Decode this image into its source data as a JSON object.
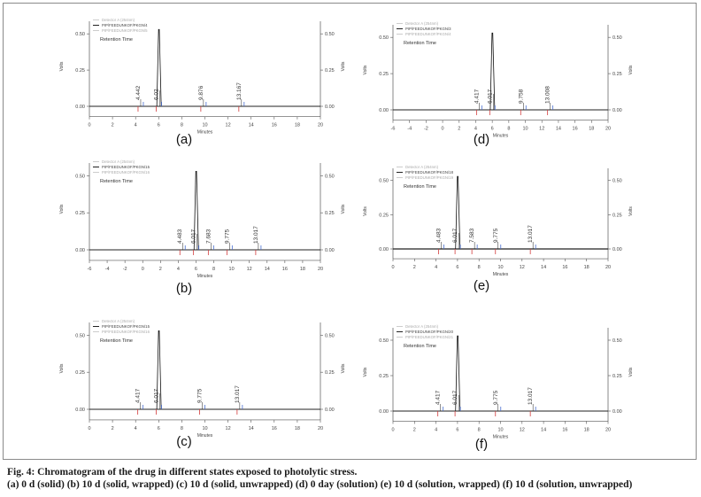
{
  "caption": {
    "title": "Fig. 4: Chromatogram of the drug in different states exposed to photolytic stress.",
    "parts": "(a) 0 d (solid) (b) 10 d (solid, wrapped) (c) 10 d (solid, unwrapped) (d) 0 day (solution) (e) 10 d (solution, wrapped) (f) 10 d (solution, unwrapped)"
  },
  "chart_data": [
    {
      "type": "line",
      "panel_label": "(a)",
      "xlabel": "Minutes",
      "ylabel_left": "Volts",
      "ylabel_right": "Volts",
      "xlim": [
        0,
        20
      ],
      "ylim": [
        -0.05,
        0.55
      ],
      "x_ticks": [
        "0",
        "2",
        "4",
        "6",
        "8",
        "10",
        "12",
        "14",
        "16",
        "18",
        "20"
      ],
      "y_ticks_left": [
        "0.00",
        "0.25",
        "0.50"
      ],
      "y_ticks_right": [
        "0.00",
        "0.25",
        "0.50"
      ],
      "legend": [
        "Detector A (254nm)",
        "PIP/FEEDUNKOF/PKGN/4",
        "PIP/FEEDUNKOF/PKGN/5"
      ],
      "legend_sub": "Retention Time",
      "peaks": [
        {
          "rt": 4.442,
          "height": 0.03,
          "label": "4.442"
        },
        {
          "rt": 6.02,
          "height": 0.53,
          "label": "6.02"
        },
        {
          "rt": 9.876,
          "height": 0.02,
          "label": "9.876"
        },
        {
          "rt": 13.167,
          "height": 0.02,
          "label": "13.167"
        }
      ]
    },
    {
      "type": "line",
      "panel_label": "(b)",
      "xlabel": "Minutes",
      "ylabel_left": "Volts",
      "ylabel_right": "Volts",
      "xlim": [
        -6,
        20
      ],
      "ylim": [
        -0.05,
        0.55
      ],
      "x_ticks": [
        "-6",
        "-4",
        "-2",
        "0",
        "2",
        "4",
        "6",
        "8",
        "10",
        "12",
        "14",
        "16",
        "18",
        "20"
      ],
      "y_ticks_left": [
        "0.00",
        "0.25",
        "0.50"
      ],
      "y_ticks_right": [
        "0.00",
        "0.25",
        "0.50"
      ],
      "legend": [
        "Detector A (254nm)",
        "PIP/FEEDUNKOF/PKGN/15",
        "PIP/FEEDUNKOF/PKGN/16"
      ],
      "legend_sub": "Retention Time",
      "peaks": [
        {
          "rt": 4.483,
          "height": 0.03,
          "label": "4.483"
        },
        {
          "rt": 6.017,
          "height": 0.53,
          "label": "6.017"
        },
        {
          "rt": 7.683,
          "height": 0.02,
          "label": "7.683"
        },
        {
          "rt": 9.775,
          "height": 0.02,
          "label": "9.775"
        },
        {
          "rt": 13.017,
          "height": 0.02,
          "label": "13.017"
        }
      ]
    },
    {
      "type": "line",
      "panel_label": "(c)",
      "xlabel": "Minutes",
      "ylabel_left": "Volts",
      "ylabel_right": "Volts",
      "xlim": [
        0,
        20
      ],
      "ylim": [
        -0.05,
        0.55
      ],
      "x_ticks": [
        "0",
        "2",
        "4",
        "6",
        "8",
        "10",
        "12",
        "14",
        "16",
        "18",
        "20"
      ],
      "y_ticks_left": [
        "0.00",
        "0.25",
        "0.50"
      ],
      "y_ticks_right": [
        "0.00",
        "0.25",
        "0.50"
      ],
      "legend": [
        "Detector A (254nm)",
        "PIP/FEEDUNKOF/PKGN/15",
        "PIP/FEEDUNKOF/PKGN/16"
      ],
      "legend_sub": "Retention Time",
      "peaks": [
        {
          "rt": 4.417,
          "height": 0.03,
          "label": "4.417"
        },
        {
          "rt": 6.017,
          "height": 0.53,
          "label": "6.017"
        },
        {
          "rt": 9.775,
          "height": 0.02,
          "label": "9.775"
        },
        {
          "rt": 13.017,
          "height": 0.02,
          "label": "13.017"
        }
      ]
    },
    {
      "type": "line",
      "panel_label": "(d)",
      "xlabel": "Minutes",
      "ylabel_left": "Volts",
      "ylabel_right": "Volts",
      "xlim": [
        -6,
        20
      ],
      "ylim": [
        -0.05,
        0.55
      ],
      "x_ticks": [
        "-6",
        "-4",
        "-2",
        "0",
        "2",
        "4",
        "6",
        "8",
        "10",
        "12",
        "14",
        "16",
        "18",
        "20"
      ],
      "y_ticks_left": [
        "0.00",
        "0.25",
        "0.50"
      ],
      "y_ticks_right": [
        "0.00",
        "0.25",
        "0.50"
      ],
      "legend": [
        "Detector A (254nm)",
        "PIP/FEEDUNKOF/PKGN/3",
        "PIP/FEEDUNKOF/PKGN/4"
      ],
      "legend_sub": "Retention Time",
      "peaks": [
        {
          "rt": 4.417,
          "height": 0.03,
          "label": "4.417"
        },
        {
          "rt": 6.017,
          "height": 0.53,
          "label": "6.017"
        },
        {
          "rt": 9.758,
          "height": 0.02,
          "label": "9.758"
        },
        {
          "rt": 13.008,
          "height": 0.02,
          "label": "13.008"
        }
      ]
    },
    {
      "type": "line",
      "panel_label": "(e)",
      "xlabel": "Minutes",
      "ylabel_left": "Volts",
      "ylabel_right": "Volts",
      "xlim": [
        0,
        20
      ],
      "ylim": [
        -0.05,
        0.55
      ],
      "x_ticks": [
        "0",
        "2",
        "4",
        "6",
        "8",
        "10",
        "12",
        "14",
        "16",
        "18",
        "20"
      ],
      "y_ticks_left": [
        "0.00",
        "0.25",
        "0.50"
      ],
      "y_ticks_right": [
        "0.00",
        "0.25",
        "0.50"
      ],
      "legend": [
        "Detector A (254nm)",
        "PIP/FEEDUNKOF/PKGN/18",
        "PIP/FEEDUNKOF/PKGN/19"
      ],
      "legend_sub": "Retention Time",
      "peaks": [
        {
          "rt": 4.483,
          "height": 0.03,
          "label": "4.483"
        },
        {
          "rt": 6.017,
          "height": 0.53,
          "label": "6.017"
        },
        {
          "rt": 7.583,
          "height": 0.02,
          "label": "7.583"
        },
        {
          "rt": 9.775,
          "height": 0.02,
          "label": "9.775"
        },
        {
          "rt": 13.017,
          "height": 0.02,
          "label": "13.017"
        }
      ]
    },
    {
      "type": "line",
      "panel_label": "(f)",
      "xlabel": "Minutes",
      "ylabel_left": "Volts",
      "ylabel_right": "Volts",
      "xlim": [
        0,
        20
      ],
      "ylim": [
        -0.05,
        0.55
      ],
      "x_ticks": [
        "0",
        "2",
        "4",
        "6",
        "8",
        "10",
        "12",
        "14",
        "16",
        "18",
        "20"
      ],
      "y_ticks_left": [
        "0.00",
        "0.25",
        "0.50"
      ],
      "y_ticks_right": [
        "0.00",
        "0.25",
        "0.50"
      ],
      "legend": [
        "Detector A (254nm)",
        "PIP/FEEDUNKOF/PKGN/20",
        "PIP/FEEDUNKOF/PKGN/21"
      ],
      "legend_sub": "Retention Time",
      "peaks": [
        {
          "rt": 4.417,
          "height": 0.03,
          "label": "4.417"
        },
        {
          "rt": 6.017,
          "height": 0.53,
          "label": "6.017"
        },
        {
          "rt": 9.775,
          "height": 0.02,
          "label": "9.775"
        },
        {
          "rt": 13.017,
          "height": 0.02,
          "label": "13.017"
        }
      ]
    }
  ]
}
